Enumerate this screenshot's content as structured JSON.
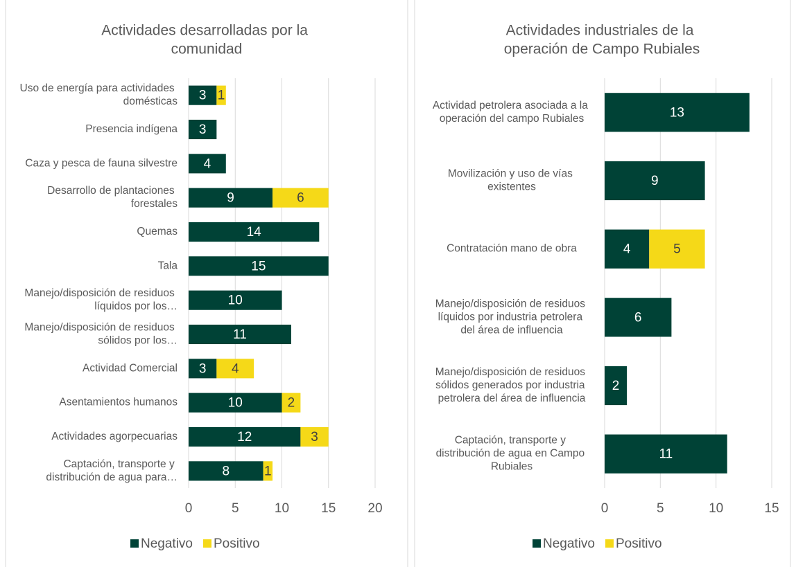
{
  "chart_data": [
    {
      "type": "bar",
      "title": "Actividades desarrolladas por la comunidad",
      "categories": [
        "Uso de energía para actividades domésticas",
        "Presencia indígena",
        "Caza y pesca de fauna silvestre",
        "Desarrollo de plantaciones forestales",
        "Quemas",
        "Tala",
        "Manejo/disposición de residuos líquidos por los…",
        "Manejo/disposición de residuos sólidos por los…",
        "Actividad Comercial",
        "Asentamientos humanos",
        "Actividades agorpecuarias",
        "Captación, transporte y distribución de agua para…"
      ],
      "series": [
        {
          "name": "Negativo",
          "color": "#004236",
          "values": [
            3,
            3,
            4,
            9,
            14,
            15,
            10,
            11,
            3,
            10,
            12,
            8
          ]
        },
        {
          "name": "Positivo",
          "color": "#f5d918",
          "values": [
            1,
            null,
            null,
            6,
            null,
            null,
            null,
            null,
            4,
            2,
            3,
            1
          ]
        }
      ],
      "xlim": [
        0,
        20
      ],
      "xticks": [
        0,
        5,
        10,
        15,
        20
      ],
      "stacked": true,
      "legend": "bottom"
    },
    {
      "type": "bar",
      "title": "Actividades industriales de la operación de Campo Rubiales",
      "categories": [
        "Actividad petrolera asociada a la operación del campo Rubiales",
        "Movilización y uso de vías existentes",
        "Contratación mano de obra",
        "Manejo/disposición de residuos líquidos por industria petrolera del área de influencia",
        "Manejo/disposición de residuos sólidos generados por industria petrolera del área de influencia",
        "Captación, transporte y distribución de agua en Campo Rubiales"
      ],
      "series": [
        {
          "name": "Negativo",
          "color": "#004236",
          "values": [
            13,
            9,
            4,
            6,
            2,
            11
          ]
        },
        {
          "name": "Positivo",
          "color": "#f5d918",
          "values": [
            null,
            null,
            5,
            null,
            null,
            null
          ]
        }
      ],
      "xlim": [
        0,
        15
      ],
      "xticks": [
        0,
        5,
        10,
        15
      ],
      "stacked": true,
      "legend": "bottom"
    }
  ]
}
